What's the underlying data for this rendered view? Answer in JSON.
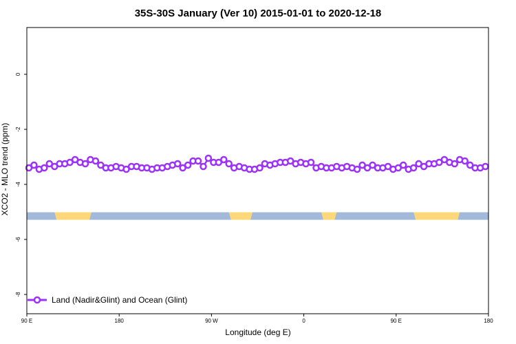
{
  "chart_data": {
    "type": "line",
    "title": "35S-30S January (Ver 10)   2015-01-01 to 2020-12-18",
    "xlabel": "Longitude (deg E)",
    "ylabel": "XCO2 - MLO trend (ppm)",
    "x_ticks": [
      {
        "value": 90,
        "label": "90 E"
      },
      {
        "value": 180,
        "label": "180"
      },
      {
        "value": 270,
        "label": "90 W"
      },
      {
        "value": 360,
        "label": "0"
      },
      {
        "value": 450,
        "label": "90 E"
      },
      {
        "value": 540,
        "label": "180"
      }
    ],
    "y_ticks": [
      {
        "value": 0,
        "label": "0"
      },
      {
        "value": -2,
        "label": "-2"
      },
      {
        "value": -4,
        "label": "-4"
      },
      {
        "value": -6,
        "label": "-6"
      },
      {
        "value": -8,
        "label": "-8"
      }
    ],
    "xlim": [
      90,
      540
    ],
    "ylim": [
      -8.7,
      1.7
    ],
    "grid": false,
    "legend_position": "bottom-left",
    "series": [
      {
        "name": "Land (Nadir&Glint) and Ocean (Glint)",
        "color": "#9b30ff",
        "marker": "open-circle",
        "x": [
          92,
          97,
          102,
          107,
          112,
          117,
          122,
          127,
          132,
          137,
          142,
          147,
          152,
          157,
          162,
          167,
          172,
          177,
          182,
          187,
          192,
          197,
          202,
          207,
          212,
          217,
          222,
          227,
          232,
          237,
          242,
          247,
          252,
          257,
          262,
          267,
          272,
          277,
          282,
          287,
          292,
          297,
          302,
          307,
          312,
          317,
          322,
          327,
          332,
          337,
          342,
          347,
          352,
          357,
          362,
          367,
          372,
          377,
          382,
          387,
          392,
          397,
          402,
          407,
          412,
          417,
          422,
          427,
          432,
          437,
          442,
          447,
          452,
          457,
          462,
          467,
          472,
          477,
          482,
          487,
          492,
          497,
          502,
          507,
          512,
          517,
          522,
          527,
          532,
          537
        ],
        "y": [
          -3.4,
          -3.3,
          -3.45,
          -3.4,
          -3.25,
          -3.35,
          -3.25,
          -3.25,
          -3.2,
          -3.1,
          -3.2,
          -3.25,
          -3.1,
          -3.15,
          -3.3,
          -3.4,
          -3.4,
          -3.35,
          -3.4,
          -3.45,
          -3.35,
          -3.35,
          -3.4,
          -3.4,
          -3.45,
          -3.4,
          -3.4,
          -3.35,
          -3.3,
          -3.25,
          -3.4,
          -3.3,
          -3.15,
          -3.15,
          -3.35,
          -3.05,
          -3.2,
          -3.2,
          -3.1,
          -3.25,
          -3.4,
          -3.35,
          -3.4,
          -3.45,
          -3.45,
          -3.4,
          -3.25,
          -3.3,
          -3.25,
          -3.2,
          -3.2,
          -3.15,
          -3.25,
          -3.2,
          -3.25,
          -3.2,
          -3.4,
          -3.35,
          -3.4,
          -3.4,
          -3.35,
          -3.4,
          -3.35,
          -3.4,
          -3.45,
          -3.3,
          -3.4,
          -3.3,
          -3.4,
          -3.4,
          -3.35,
          -3.45,
          -3.4,
          -3.3,
          -3.45,
          -3.4,
          -3.25,
          -3.35,
          -3.25,
          -3.25,
          -3.2,
          -3.1,
          -3.2,
          -3.25,
          -3.1,
          -3.15,
          -3.3,
          -3.4,
          -3.4,
          -3.35
        ]
      }
    ],
    "map_strip": {
      "y_value": -5.15,
      "ocean_color": "#a3b9d9",
      "land_color": "#fcd87a",
      "land_segments": [
        [
          117,
          153
        ],
        [
          287,
          310
        ],
        [
          377,
          392
        ],
        [
          467,
          512
        ]
      ]
    }
  }
}
